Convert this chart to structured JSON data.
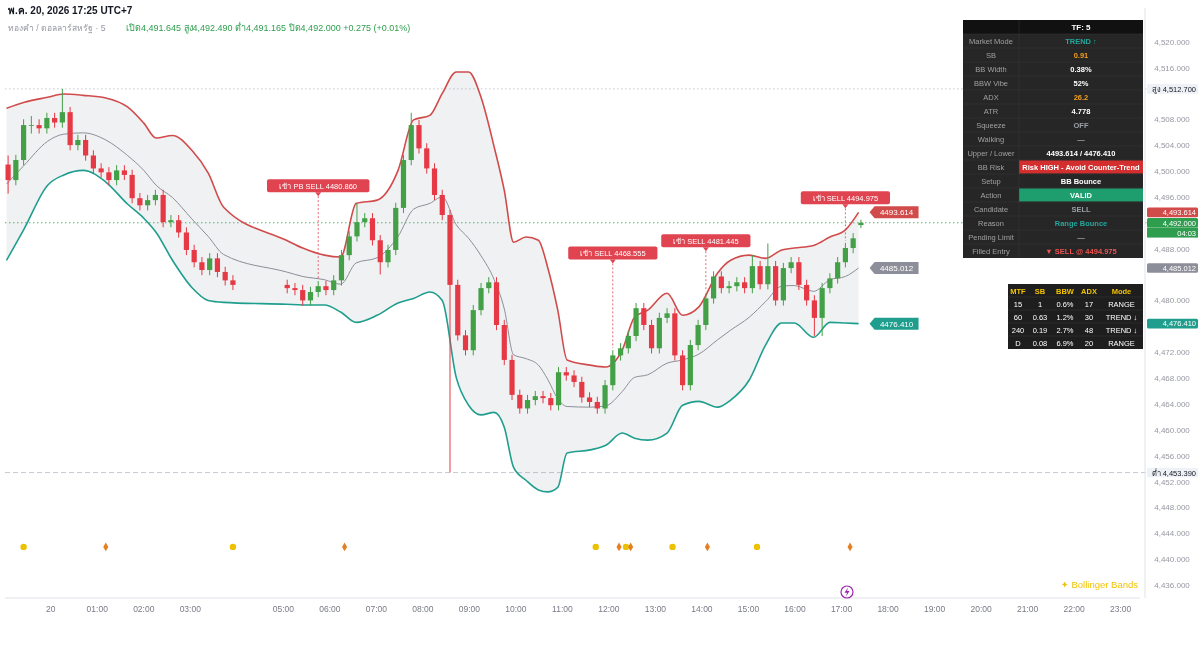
{
  "chart_data": [
    {
      "type": "candlestick",
      "title": "ทองคำ / ดอลลาร์สหรัฐ · 5",
      "subtitle": "เปิด4,491.645 สูง4,492.490 ต่ำ4,491.165 ปิด4,492.000 +0.275 (+0.01%)",
      "annotations": [
        "พ.ค. 20, 2026 17:25 UTC+7",
        "✦ Bollinger Bands",
        "4,493.614",
        "4,476.410",
        "4,485.012",
        "04:03",
        {
          "text": "เข้า PB SELL 4480.860",
          "x": "2026-05-20T05:45",
          "y": 4483.0
        },
        {
          "text": "เข้า SELL 4468.555",
          "x": "2026-05-20T12:05",
          "y": 4472.3
        },
        {
          "text": "เข้า SELL 4481.445",
          "x": "2026-05-20T14:05",
          "y": 4481.1
        },
        {
          "text": "เข้า SELL 4494.975",
          "x": "2026-05-20T17:05",
          "y": 4488.9
        },
        {
          "text": "4493.614",
          "x": "2026-05-20T17:22",
          "y": 4493.614
        },
        {
          "text": "4485.012",
          "x": "2026-05-20T17:22",
          "y": 4485.012
        },
        {
          "text": "4476.410",
          "x": "2026-05-20T17:22",
          "y": 4476.41
        }
      ],
      "x": [
        "2026-05-19T23:05",
        "2026-05-19T23:15",
        "2026-05-19T23:25",
        "2026-05-19T23:35",
        "2026-05-19T23:45",
        "2026-05-19T23:55",
        "2026-05-20T00:05",
        "2026-05-20T00:15",
        "2026-05-20T00:25",
        "2026-05-20T00:35",
        "2026-05-20T00:45",
        "2026-05-20T00:55",
        "2026-05-20T01:05",
        "2026-05-20T01:15",
        "2026-05-20T01:25",
        "2026-05-20T01:35",
        "2026-05-20T01:45",
        "2026-05-20T01:55",
        "2026-05-20T02:05",
        "2026-05-20T02:15",
        "2026-05-20T02:25",
        "2026-05-20T02:35",
        "2026-05-20T02:45",
        "2026-05-20T02:55",
        "2026-05-20T03:05",
        "2026-05-20T03:15",
        "2026-05-20T03:25",
        "2026-05-20T03:35",
        "2026-05-20T03:45",
        "2026-05-20T03:55",
        "2026-05-20T05:05",
        "2026-05-20T05:15",
        "2026-05-20T05:25",
        "2026-05-20T05:35",
        "2026-05-20T05:45",
        "2026-05-20T05:55",
        "2026-05-20T06:05",
        "2026-05-20T06:15",
        "2026-05-20T06:25",
        "2026-05-20T06:35",
        "2026-05-20T06:45",
        "2026-05-20T06:55",
        "2026-05-20T07:05",
        "2026-05-20T07:15",
        "2026-05-20T07:25",
        "2026-05-20T07:35",
        "2026-05-20T07:45",
        "2026-05-20T07:55",
        "2026-05-20T08:05",
        "2026-05-20T08:15",
        "2026-05-20T08:25",
        "2026-05-20T08:35",
        "2026-05-20T08:45",
        "2026-05-20T08:55",
        "2026-05-20T09:05",
        "2026-05-20T09:15",
        "2026-05-20T09:25",
        "2026-05-20T09:35",
        "2026-05-20T09:45",
        "2026-05-20T09:55",
        "2026-05-20T10:05",
        "2026-05-20T10:15",
        "2026-05-20T10:25",
        "2026-05-20T10:35",
        "2026-05-20T10:45",
        "2026-05-20T10:55",
        "2026-05-20T11:05",
        "2026-05-20T11:15",
        "2026-05-20T11:25",
        "2026-05-20T11:35",
        "2026-05-20T11:45",
        "2026-05-20T11:55",
        "2026-05-20T12:05",
        "2026-05-20T12:15",
        "2026-05-20T12:25",
        "2026-05-20T12:35",
        "2026-05-20T12:45",
        "2026-05-20T12:55",
        "2026-05-20T13:05",
        "2026-05-20T13:15",
        "2026-05-20T13:25",
        "2026-05-20T13:35",
        "2026-05-20T13:45",
        "2026-05-20T13:55",
        "2026-05-20T14:05",
        "2026-05-20T14:15",
        "2026-05-20T14:25",
        "2026-05-20T14:35",
        "2026-05-20T14:45",
        "2026-05-20T14:55",
        "2026-05-20T15:05",
        "2026-05-20T15:15",
        "2026-05-20T15:25",
        "2026-05-20T15:35",
        "2026-05-20T15:45",
        "2026-05-20T15:55",
        "2026-05-20T16:05",
        "2026-05-20T16:15",
        "2026-05-20T16:25",
        "2026-05-20T16:35",
        "2026-05-20T16:45",
        "2026-05-20T16:55",
        "2026-05-20T17:05",
        "2026-05-20T17:15",
        "2026-05-20T17:25"
      ],
      "ohlc": [
        [
          4501.0,
          4502.4,
          4496.5,
          4498.6
        ],
        [
          4498.6,
          4502.5,
          4497.8,
          4501.7
        ],
        [
          4501.7,
          4508.0,
          4500.9,
          4507.1
        ],
        [
          4507.1,
          4508.5,
          4505.8,
          4507.1
        ],
        [
          4507.1,
          4508.0,
          4505.8,
          4506.6
        ],
        [
          4506.6,
          4509.0,
          4505.8,
          4508.2
        ],
        [
          4508.2,
          4509.0,
          4506.7,
          4507.5
        ],
        [
          4507.5,
          4512.7,
          4506.7,
          4509.1
        ],
        [
          4509.1,
          4509.9,
          4503.2,
          4504.0
        ],
        [
          4504.0,
          4505.6,
          4503.2,
          4504.8
        ],
        [
          4504.8,
          4505.6,
          4501.6,
          4502.4
        ],
        [
          4502.4,
          4503.2,
          4499.6,
          4500.4
        ],
        [
          4500.4,
          4501.2,
          4499.0,
          4499.8
        ],
        [
          4499.8,
          4500.6,
          4497.8,
          4498.6
        ],
        [
          4498.6,
          4500.9,
          4497.8,
          4500.1
        ],
        [
          4500.1,
          4500.9,
          4498.6,
          4499.4
        ],
        [
          4499.4,
          4500.2,
          4495.0,
          4495.8
        ],
        [
          4495.8,
          4496.6,
          4493.9,
          4494.7
        ],
        [
          4494.7,
          4496.3,
          4493.9,
          4495.5
        ],
        [
          4495.5,
          4497.1,
          4494.7,
          4496.3
        ],
        [
          4496.3,
          4497.1,
          4491.3,
          4492.1
        ],
        [
          4492.1,
          4493.2,
          4491.3,
          4492.4
        ],
        [
          4492.4,
          4493.2,
          4489.7,
          4490.5
        ],
        [
          4490.5,
          4491.3,
          4487.0,
          4487.8
        ],
        [
          4487.8,
          4488.6,
          4485.1,
          4485.9
        ],
        [
          4485.9,
          4486.7,
          4483.9,
          4484.7
        ],
        [
          4484.7,
          4487.3,
          4483.9,
          4486.5
        ],
        [
          4486.5,
          4487.3,
          4483.6,
          4484.4
        ],
        [
          4484.4,
          4485.2,
          4482.3,
          4483.1
        ],
        [
          4483.1,
          4483.9,
          4481.6,
          4482.4
        ],
        [
          4482.4,
          4483.2,
          4481.1,
          4481.9
        ],
        [
          4481.9,
          4482.7,
          4480.8,
          4481.6
        ],
        [
          4481.6,
          4482.4,
          4479.2,
          4480.0
        ],
        [
          4480.0,
          4482.1,
          4479.2,
          4481.3
        ],
        [
          4481.3,
          4483.0,
          4480.5,
          4482.2
        ],
        [
          4482.2,
          4483.0,
          4480.8,
          4481.6
        ],
        [
          4481.6,
          4483.9,
          4480.8,
          4483.1
        ],
        [
          4483.1,
          4487.8,
          4482.3,
          4487.0
        ],
        [
          4487.0,
          4490.7,
          4486.2,
          4489.9
        ],
        [
          4489.9,
          4495.0,
          4489.1,
          4492.1
        ],
        [
          4492.1,
          4493.5,
          4491.3,
          4492.7
        ],
        [
          4492.7,
          4493.5,
          4488.5,
          4489.3
        ],
        [
          4489.3,
          4490.1,
          4484.0,
          4485.9
        ],
        [
          4485.9,
          4488.6,
          4485.1,
          4487.8
        ],
        [
          4487.8,
          4495.1,
          4487.0,
          4494.3
        ],
        [
          4494.3,
          4502.5,
          4493.5,
          4501.7
        ],
        [
          4501.7,
          4509.0,
          4500.9,
          4507.1
        ],
        [
          4507.1,
          4507.9,
          4502.7,
          4503.5
        ],
        [
          4503.5,
          4504.3,
          4499.6,
          4500.4
        ],
        [
          4500.4,
          4501.2,
          4495.5,
          4496.3
        ],
        [
          4496.3,
          4497.1,
          4492.4,
          4493.2
        ],
        [
          4493.2,
          4494.0,
          4453.4,
          4482.4
        ],
        [
          4482.4,
          4483.2,
          4473.8,
          4474.6
        ],
        [
          4474.6,
          4475.4,
          4471.5,
          4472.3
        ],
        [
          4472.3,
          4479.3,
          4471.5,
          4478.5
        ],
        [
          4478.5,
          4482.7,
          4477.7,
          4481.9
        ],
        [
          4481.9,
          4483.6,
          4481.1,
          4482.8
        ],
        [
          4482.8,
          4483.6,
          4475.4,
          4476.2
        ],
        [
          4476.2,
          4477.0,
          4470.0,
          4470.8
        ],
        [
          4470.8,
          4471.6,
          4464.6,
          4465.4
        ],
        [
          4465.4,
          4466.2,
          4462.5,
          4463.3
        ],
        [
          4463.3,
          4465.4,
          4462.5,
          4464.6
        ],
        [
          4464.6,
          4466.0,
          4463.8,
          4465.2
        ],
        [
          4465.2,
          4466.0,
          4464.1,
          4464.9
        ],
        [
          4464.9,
          4465.7,
          4463.0,
          4463.8
        ],
        [
          4463.8,
          4469.7,
          4463.0,
          4468.9
        ],
        [
          4468.9,
          4469.7,
          4467.6,
          4468.4
        ],
        [
          4468.4,
          4469.2,
          4466.6,
          4467.4
        ],
        [
          4467.4,
          4468.2,
          4464.2,
          4465.0
        ],
        [
          4465.0,
          4465.8,
          4463.5,
          4464.3
        ],
        [
          4464.3,
          4465.1,
          4462.5,
          4463.3
        ],
        [
          4463.3,
          4467.7,
          4462.5,
          4466.9
        ],
        [
          4466.9,
          4472.3,
          4466.1,
          4471.5
        ],
        [
          4471.5,
          4473.4,
          4470.7,
          4472.6
        ],
        [
          4472.6,
          4475.3,
          4471.8,
          4474.5
        ],
        [
          4474.5,
          4479.6,
          4473.7,
          4478.8
        ],
        [
          4478.8,
          4479.6,
          4475.4,
          4476.2
        ],
        [
          4476.2,
          4477.0,
          4471.8,
          4472.6
        ],
        [
          4472.6,
          4478.1,
          4471.8,
          4477.3
        ],
        [
          4477.3,
          4478.8,
          4476.5,
          4478.0
        ],
        [
          4478.0,
          4478.8,
          4470.7,
          4471.5
        ],
        [
          4471.5,
          4472.3,
          4466.1,
          4466.9
        ],
        [
          4466.9,
          4473.9,
          4466.1,
          4473.1
        ],
        [
          4473.1,
          4477.0,
          4472.3,
          4476.2
        ],
        [
          4476.2,
          4481.1,
          4475.4,
          4480.3
        ],
        [
          4480.3,
          4484.5,
          4479.5,
          4483.7
        ],
        [
          4483.7,
          4484.5,
          4481.1,
          4481.9
        ],
        [
          4481.9,
          4483.0,
          4481.1,
          4482.2
        ],
        [
          4482.2,
          4483.6,
          4481.4,
          4482.8
        ],
        [
          4482.8,
          4483.6,
          4481.1,
          4481.9
        ],
        [
          4481.9,
          4487.0,
          4481.1,
          4485.3
        ],
        [
          4485.3,
          4486.1,
          4481.7,
          4482.5
        ],
        [
          4482.5,
          4488.8,
          4481.7,
          4485.3
        ],
        [
          4485.3,
          4486.1,
          4479.2,
          4480.0
        ],
        [
          4480.0,
          4485.8,
          4479.2,
          4485.0
        ],
        [
          4485.0,
          4486.7,
          4484.2,
          4485.9
        ],
        [
          4485.9,
          4486.7,
          4481.6,
          4482.4
        ],
        [
          4482.4,
          4483.2,
          4479.2,
          4480.0
        ],
        [
          4480.0,
          4480.8,
          4474.5,
          4477.3
        ],
        [
          4477.3,
          4482.7,
          4474.5,
          4481.9
        ],
        [
          4481.9,
          4484.2,
          4481.1,
          4483.4
        ],
        [
          4483.4,
          4486.7,
          4482.6,
          4485.9
        ],
        [
          4485.9,
          4488.9,
          4485.1,
          4488.1
        ],
        [
          4488.1,
          4490.4,
          4487.3,
          4489.6
        ],
        [
          4491.645,
          4492.49,
          4491.165,
          4492.0
        ]
      ],
      "series": [
        {
          "type": "line",
          "color": "#d14b4b",
          "x": [
            "2026-05-19T23:03",
            "2026-05-19T23:25",
            "2026-05-19T23:56",
            "2026-05-20T00:17",
            "2026-05-20T00:42",
            "2026-05-20T01:11",
            "2026-05-20T01:39",
            "2026-05-20T02:00",
            "2026-05-20T02:16",
            "2026-05-20T02:37",
            "2026-05-20T03:02",
            "2026-05-20T03:23",
            "2026-05-20T03:43",
            "2026-05-20T05:04",
            "2026-05-20T05:25",
            "2026-05-20T05:53",
            "2026-05-20T06:14",
            "2026-05-20T06:34",
            "2026-05-20T07:01",
            "2026-05-20T07:28",
            "2026-05-20T07:48",
            "2026-05-20T08:09",
            "2026-05-20T08:25",
            "2026-05-20T08:43",
            "2026-05-20T08:59",
            "2026-05-20T09:15",
            "2026-05-20T09:32",
            "2026-05-20T09:45",
            "2026-05-20T09:57",
            "2026-05-20T10:13",
            "2026-05-20T10:29",
            "2026-05-20T10:41",
            "2026-05-20T10:54",
            "2026-05-20T11:06",
            "2026-05-20T11:36",
            "2026-05-20T11:56",
            "2026-05-20T12:17",
            "2026-05-20T12:33",
            "2026-05-20T12:50",
            "2026-05-20T13:15",
            "2026-05-20T13:35",
            "2026-05-20T13:56",
            "2026-05-20T14:20",
            "2026-05-20T14:37",
            "2026-05-20T15:01",
            "2026-05-20T15:22",
            "2026-05-20T15:43",
            "2026-05-20T15:59",
            "2026-05-20T16:24",
            "2026-05-20T16:45",
            "2026-05-20T17:05",
            "2026-05-20T17:22"
          ],
          "values": [
            4509.7,
            4510.6,
            4511.4,
            4511.9,
            4511.7,
            4511.3,
            4509.9,
            4507.4,
            4505.1,
            4505.5,
            4503.2,
            4499.7,
            4494.4,
            4489.3,
            4488.1,
            4487.0,
            4486.7,
            4495.0,
            4495.5,
            4500.1,
            4507.9,
            4508.6,
            4512.0,
            4515.3,
            4515.3,
            4511.4,
            4503.7,
            4497.0,
            4489.0,
            4489.8,
            4489.3,
            4485.1,
            4478.5,
            4470.8,
            4470.0,
            4469.7,
            4472.3,
            4477.4,
            4478.5,
            4481.1,
            4477.7,
            4479.0,
            4484.2,
            4486.2,
            4487.0,
            4486.5,
            4487.8,
            4488.1,
            4488.5,
            4489.8,
            4490.9,
            4493.614
          ]
        },
        {
          "type": "line",
          "color": "#1f9e8e",
          "x": [
            "2026-05-19T23:03",
            "2026-05-19T23:25",
            "2026-05-19T23:56",
            "2026-05-20T00:17",
            "2026-05-20T00:42",
            "2026-05-20T01:11",
            "2026-05-20T01:39",
            "2026-05-20T02:00",
            "2026-05-20T02:16",
            "2026-05-20T02:37",
            "2026-05-20T03:02",
            "2026-05-20T03:23",
            "2026-05-20T03:43",
            "2026-05-20T05:04",
            "2026-05-20T05:25",
            "2026-05-20T05:53",
            "2026-05-20T06:14",
            "2026-05-20T06:34",
            "2026-05-20T07:01",
            "2026-05-20T07:28",
            "2026-05-20T07:48",
            "2026-05-20T08:09",
            "2026-05-20T08:25",
            "2026-05-20T08:43",
            "2026-05-20T08:59",
            "2026-05-20T09:15",
            "2026-05-20T09:32",
            "2026-05-20T09:45",
            "2026-05-20T09:57",
            "2026-05-20T10:13",
            "2026-05-20T10:29",
            "2026-05-20T10:41",
            "2026-05-20T10:54",
            "2026-05-20T11:06",
            "2026-05-20T11:36",
            "2026-05-20T11:56",
            "2026-05-20T12:17",
            "2026-05-20T12:33",
            "2026-05-20T12:50",
            "2026-05-20T13:15",
            "2026-05-20T13:35",
            "2026-05-20T13:56",
            "2026-05-20T14:20",
            "2026-05-20T14:37",
            "2026-05-20T15:01",
            "2026-05-20T15:22",
            "2026-05-20T15:43",
            "2026-05-20T15:59",
            "2026-05-20T16:24",
            "2026-05-20T16:45",
            "2026-05-20T17:05",
            "2026-05-20T17:22"
          ],
          "values": [
            4486.2,
            4490.9,
            4497.8,
            4499.4,
            4500.1,
            4498.3,
            4494.9,
            4492.7,
            4490.5,
            4486.2,
            4482.0,
            4480.0,
            4479.7,
            4479.4,
            4479.3,
            4479.3,
            4478.2,
            4476.6,
            4477.7,
            4479.6,
            4480.3,
            4481.3,
            4480.0,
            4468.1,
            4463.8,
            4462.3,
            4462.7,
            4460.4,
            4454.2,
            4452.2,
            4450.7,
            4450.4,
            4451.1,
            4456.4,
            4456.9,
            4457.6,
            4459.5,
            4458.7,
            4458.4,
            4459.5,
            4463.8,
            4464.4,
            4463.5,
            4464.6,
            4467.7,
            4473.1,
            4476.5,
            4476.5,
            4474.3,
            4476.6,
            4476.5,
            4476.41
          ]
        },
        {
          "type": "line",
          "color": "#8c8f99",
          "x": [
            "2026-05-19T23:03",
            "2026-05-19T23:25",
            "2026-05-19T23:56",
            "2026-05-20T00:17",
            "2026-05-20T00:42",
            "2026-05-20T01:11",
            "2026-05-20T01:39",
            "2026-05-20T02:00",
            "2026-05-20T02:16",
            "2026-05-20T02:37",
            "2026-05-20T03:02",
            "2026-05-20T03:23",
            "2026-05-20T03:43",
            "2026-05-20T05:04",
            "2026-05-20T05:25",
            "2026-05-20T05:53",
            "2026-05-20T06:14",
            "2026-05-20T06:34",
            "2026-05-20T07:01",
            "2026-05-20T07:28",
            "2026-05-20T07:48",
            "2026-05-20T08:09",
            "2026-05-20T08:25",
            "2026-05-20T08:43",
            "2026-05-20T08:59",
            "2026-05-20T09:15",
            "2026-05-20T09:32",
            "2026-05-20T09:45",
            "2026-05-20T09:57",
            "2026-05-20T10:13",
            "2026-05-20T10:29",
            "2026-05-20T10:41",
            "2026-05-20T10:54",
            "2026-05-20T11:06",
            "2026-05-20T11:36",
            "2026-05-20T11:56",
            "2026-05-20T12:17",
            "2026-05-20T12:33",
            "2026-05-20T12:50",
            "2026-05-20T13:15",
            "2026-05-20T13:35",
            "2026-05-20T13:56",
            "2026-05-20T14:20",
            "2026-05-20T14:37",
            "2026-05-20T15:01",
            "2026-05-20T15:22",
            "2026-05-20T15:43",
            "2026-05-20T15:59",
            "2026-05-20T16:24",
            "2026-05-20T16:45",
            "2026-05-20T17:05",
            "2026-05-20T17:22"
          ],
          "values": [
            4498.0,
            4500.8,
            4504.6,
            4505.7,
            4505.9,
            4504.8,
            4502.4,
            4500.1,
            4497.8,
            4495.9,
            4492.6,
            4489.9,
            4487.1,
            4484.4,
            4483.7,
            4483.2,
            4482.5,
            4485.8,
            4486.6,
            4489.9,
            4494.1,
            4495.0,
            4496.0,
            4491.7,
            4489.6,
            4486.9,
            4483.2,
            4478.7,
            4471.6,
            4471.0,
            4470.0,
            4467.8,
            4464.8,
            4463.6,
            4463.5,
            4463.7,
            4465.9,
            4468.1,
            4468.5,
            4470.3,
            4470.8,
            4471.7,
            4473.9,
            4475.4,
            4477.4,
            4479.8,
            4482.2,
            4482.3,
            4481.4,
            4483.2,
            4483.7,
            4485.012
          ],
          "upper": [
            4509.7,
            4510.6,
            4511.4,
            4511.9,
            4511.7,
            4511.3,
            4509.9,
            4507.4,
            4505.1,
            4505.5,
            4503.2,
            4499.7,
            4494.4,
            4489.3,
            4488.1,
            4487.0,
            4486.7,
            4495.0,
            4495.5,
            4500.1,
            4507.9,
            4508.6,
            4512.0,
            4515.3,
            4515.3,
            4511.4,
            4503.7,
            4497.0,
            4489.0,
            4489.8,
            4489.3,
            4485.1,
            4478.5,
            4470.8,
            4470.0,
            4469.7,
            4472.3,
            4477.4,
            4478.5,
            4481.1,
            4477.7,
            4479.0,
            4484.2,
            4486.2,
            4487.0,
            4486.5,
            4487.8,
            4488.1,
            4488.5,
            4489.8,
            4490.9,
            4493.614
          ],
          "lower": [
            4486.2,
            4490.9,
            4497.8,
            4499.4,
            4500.1,
            4498.3,
            4494.9,
            4492.7,
            4490.5,
            4486.2,
            4482.0,
            4480.0,
            4479.7,
            4479.4,
            4479.3,
            4479.3,
            4478.2,
            4476.6,
            4477.7,
            4479.6,
            4480.3,
            4481.3,
            4480.0,
            4468.1,
            4463.8,
            4462.3,
            4462.7,
            4460.4,
            4454.2,
            4452.2,
            4450.7,
            4450.4,
            4451.1,
            4456.4,
            4456.9,
            4457.6,
            4459.5,
            4458.7,
            4458.4,
            4459.5,
            4463.8,
            4464.4,
            4463.5,
            4464.6,
            4467.7,
            4473.1,
            4476.5,
            4476.5,
            4474.3,
            4476.6,
            4476.5,
            4476.41
          ]
        },
        {
          "type": "scatter",
          "color": "#ecc200",
          "marker": "circle",
          "x": [
            "2026-05-19T23:25",
            "2026-05-20T03:55",
            "2026-05-20T11:43",
            "2026-05-20T12:22",
            "2026-05-20T13:22",
            "2026-05-20T15:11"
          ],
          "values": [
            4441.9,
            4441.9,
            4441.9,
            4441.9,
            4441.9,
            4441.9
          ]
        },
        {
          "type": "scatter",
          "color": "#e67e22",
          "marker": "diamond",
          "x": [
            "2026-05-20T01:11",
            "2026-05-20T06:19",
            "2026-05-20T12:13",
            "2026-05-20T12:28",
            "2026-05-20T14:07",
            "2026-05-20T17:11"
          ],
          "values": [
            4441.9,
            4441.9,
            4441.9,
            4441.9,
            4441.9,
            4441.9
          ]
        }
      ],
      "xlim": [
        "2026-05-19T23:01",
        "2026-05-20T23:25"
      ],
      "xticks": [
        {
          "value": "2026-05-20T00:00",
          "label": "20"
        },
        {
          "value": "2026-05-20T01:00",
          "label": "01:00"
        },
        {
          "value": "2026-05-20T02:00",
          "label": "02:00"
        },
        {
          "value": "2026-05-20T03:00",
          "label": "03:00"
        },
        {
          "value": "2026-05-20T05:00",
          "label": "05:00"
        },
        {
          "value": "2026-05-20T06:00",
          "label": "06:00"
        },
        {
          "value": "2026-05-20T07:00",
          "label": "07:00"
        },
        {
          "value": "2026-05-20T08:00",
          "label": "08:00"
        },
        {
          "value": "2026-05-20T09:00",
          "label": "09:00"
        },
        {
          "value": "2026-05-20T10:00",
          "label": "10:00"
        },
        {
          "value": "2026-05-20T11:00",
          "label": "11:00"
        },
        {
          "value": "2026-05-20T12:00",
          "label": "12:00"
        },
        {
          "value": "2026-05-20T13:00",
          "label": "13:00"
        },
        {
          "value": "2026-05-20T14:00",
          "label": "14:00"
        },
        {
          "value": "2026-05-20T15:00",
          "label": "15:00"
        },
        {
          "value": "2026-05-20T16:00",
          "label": "16:00"
        },
        {
          "value": "2026-05-20T17:00",
          "label": "17:00"
        },
        {
          "value": "2026-05-20T18:00",
          "label": "18:00"
        },
        {
          "value": "2026-05-20T19:00",
          "label": "19:00"
        },
        {
          "value": "2026-05-20T20:00",
          "label": "20:00"
        },
        {
          "value": "2026-05-20T21:00",
          "label": "21:00"
        },
        {
          "value": "2026-05-20T22:00",
          "label": "22:00"
        },
        {
          "value": "2026-05-20T23:00",
          "label": "23:00"
        }
      ],
      "ylim": [
        4434,
        4525.2
      ],
      "yticks": [
        {
          "value": 4436,
          "label": "4,436.000"
        },
        {
          "value": 4440,
          "label": "4,440.000"
        },
        {
          "value": 4444,
          "label": "4,444.000"
        },
        {
          "value": 4448,
          "label": "4,448.000"
        },
        {
          "value": 4452,
          "label": "4,452.000"
        },
        {
          "value": 4456,
          "label": "4,456.000"
        },
        {
          "value": 4460,
          "label": "4,460.000"
        },
        {
          "value": 4464,
          "label": "4,464.000"
        },
        {
          "value": 4468,
          "label": "4,468.000"
        },
        {
          "value": 4472,
          "label": "4,472.000"
        },
        {
          "value": 4480,
          "label": "4,480.000"
        },
        {
          "value": 4488,
          "label": "4,488.000"
        },
        {
          "value": 4496,
          "label": "4,496.000"
        },
        {
          "value": 4500,
          "label": "4,500.000"
        },
        {
          "value": 4504,
          "label": "4,504.000"
        },
        {
          "value": 4508,
          "label": "4,508.000"
        },
        {
          "value": 4516,
          "label": "4,516.000"
        },
        {
          "value": 4520,
          "label": "4,520.000"
        }
      ],
      "ref_lines": [
        {
          "axis": "y",
          "value": 4512.7,
          "label": "สูง 4,512.700",
          "color": "#b8bcc6",
          "line_style": "dotted"
        },
        {
          "axis": "y",
          "value": 4453.39,
          "label": "ต่ำ 4,453.390",
          "color": "#b8bcc6",
          "line_style": "dashed"
        },
        {
          "axis": "y",
          "value": 4492.0,
          "label": "4,492.000",
          "color": "#2e9e4e",
          "line_style": "dotted"
        }
      ]
    },
    {
      "type": "other",
      "title": "TF: 5",
      "categories": [
        "Market Mode",
        "SB",
        "BB Width",
        "BBW Vibe",
        "ADX",
        "ATR",
        "Squeeze",
        "Walking",
        "Upper / Lower",
        "BB Risk",
        "Setup",
        "Action",
        "Candidate",
        "Reason",
        "Pending Limit",
        "Filled Entry"
      ],
      "cell_labels": [
        [
          "TREND ↑"
        ],
        [
          "0.91"
        ],
        [
          "0.38%"
        ],
        [
          "52%"
        ],
        [
          "26.2"
        ],
        [
          "4.778"
        ],
        [
          "OFF"
        ],
        [
          "—"
        ],
        [
          "4493.614 / 4476.410"
        ],
        [
          "Risk HIGH - Avoid Counter-Trend"
        ],
        [
          "BB Bounce"
        ],
        [
          "VALID"
        ],
        [
          "SELL"
        ],
        [
          "Range Bounce"
        ],
        [
          "—"
        ],
        [
          "▼ SELL @ 4494.975"
        ]
      ],
      "colors": [
        "#26a69a",
        "#f59f1e",
        "#ffffff",
        "#ffffff",
        "#f59f1e",
        "#ffffff",
        "#9aa0a6",
        "#9aa0a6",
        "#ffffff",
        "#d32f2f",
        "#ffffff",
        "#1e9e6e",
        "#9aa0a6",
        "#26a69a",
        "#9aa0a6",
        "#ef5350"
      ]
    },
    {
      "type": "other",
      "categories": [
        "MTF",
        "SB",
        "BBW",
        "ADX",
        "Mode"
      ],
      "cell_labels": [
        [
          "15",
          "1",
          "0.6%",
          "17",
          "RANGE"
        ],
        [
          "60",
          "0.63",
          "1.2%",
          "30",
          "TREND ↓"
        ],
        [
          "240",
          "0.19",
          "2.7%",
          "48",
          "TREND ↓"
        ],
        [
          "D",
          "0.08",
          "6.9%",
          "20",
          "RANGE"
        ]
      ]
    }
  ]
}
